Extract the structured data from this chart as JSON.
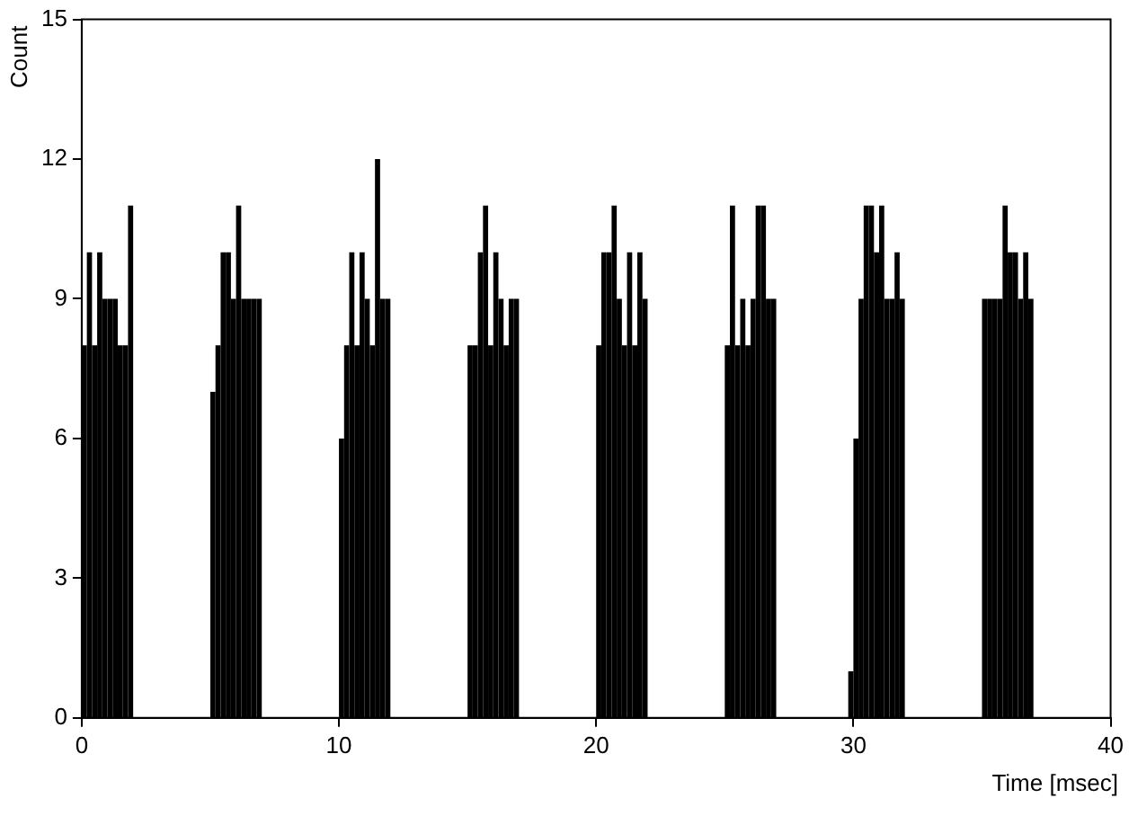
{
  "chart_data": {
    "type": "histogram",
    "xlabel": "Time [msec]",
    "ylabel": "Count",
    "color": "#000000",
    "bins": [
      0,
      0.2,
      0.4,
      0.6,
      0.8,
      1,
      1.2,
      1.4,
      1.6,
      1.8,
      2,
      5,
      5.2,
      5.4,
      5.6,
      5.8,
      6,
      6.2,
      6.4,
      6.6,
      6.8,
      7,
      10,
      10.2,
      10.4,
      10.6,
      10.8,
      11,
      11.2,
      11.4,
      11.6,
      11.8,
      12,
      15,
      15.2,
      15.4,
      15.6,
      15.8,
      16,
      16.2,
      16.4,
      16.6,
      16.8,
      17,
      20,
      20.2,
      20.4,
      20.6,
      20.8,
      21,
      21.2,
      21.4,
      21.6,
      21.8,
      22,
      25,
      25.2,
      25.4,
      25.6,
      25.8,
      26,
      26.2,
      26.4,
      26.6,
      26.8,
      27,
      29.8,
      30,
      30.2,
      30.4,
      30.6,
      30.8,
      31,
      31.2,
      31.4,
      31.6,
      31.8,
      32,
      35,
      35.2,
      35.4,
      35.6,
      35.8,
      36,
      36.2,
      36.4,
      36.6,
      36.8,
      37
    ],
    "values": [
      8,
      10,
      8,
      10,
      9,
      9,
      9,
      8,
      8,
      11,
      0,
      7,
      8,
      10,
      10,
      9,
      11,
      9,
      9,
      9,
      9,
      0,
      6,
      8,
      10,
      8,
      10,
      9,
      8,
      12,
      9,
      9,
      0,
      8,
      8,
      10,
      11,
      8,
      10,
      9,
      8,
      9,
      9,
      0,
      8,
      10,
      10,
      11,
      9,
      8,
      10,
      8,
      10,
      9,
      0,
      8,
      11,
      8,
      9,
      8,
      9,
      11,
      11,
      9,
      9,
      0,
      1,
      6,
      9,
      11,
      11,
      10,
      11,
      9,
      9,
      10,
      9,
      0,
      9,
      9,
      9,
      9,
      11,
      10,
      10,
      9,
      10,
      9
    ],
    "xlim": [
      0,
      40
    ],
    "xticks": [
      0,
      10,
      20,
      30,
      40
    ],
    "ylim": [
      0,
      15
    ],
    "yticks": [
      0,
      3,
      6,
      9,
      12,
      15
    ],
    "grid": false,
    "legend": false
  }
}
